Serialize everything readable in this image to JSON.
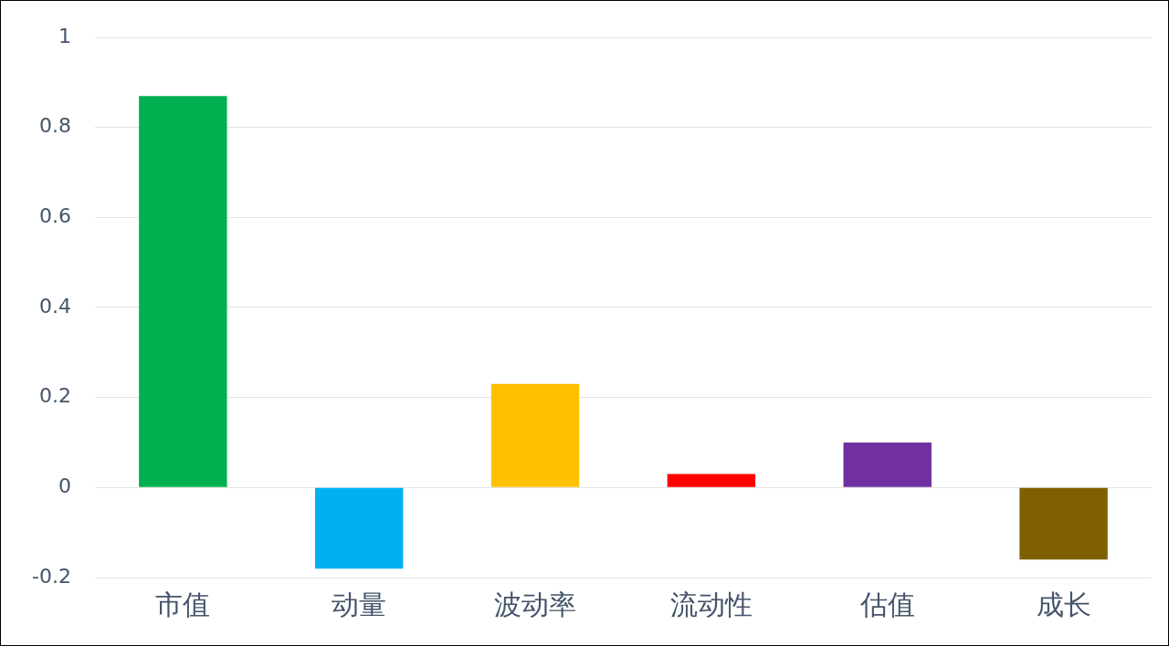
{
  "chart_data": {
    "type": "bar",
    "categories": [
      "市值",
      "动量",
      "波动率",
      "流动性",
      "估值",
      "成长"
    ],
    "values": [
      0.87,
      -0.18,
      0.23,
      0.03,
      0.1,
      -0.16
    ],
    "colors": [
      "#00b050",
      "#00b0f0",
      "#ffc000",
      "#ff0000",
      "#7030a0",
      "#7f6000"
    ],
    "ylim": [
      -0.2,
      1
    ],
    "yticks": [
      -0.2,
      0,
      0.2,
      0.4,
      0.6,
      0.8,
      1
    ],
    "grid": "y",
    "legend": false
  }
}
